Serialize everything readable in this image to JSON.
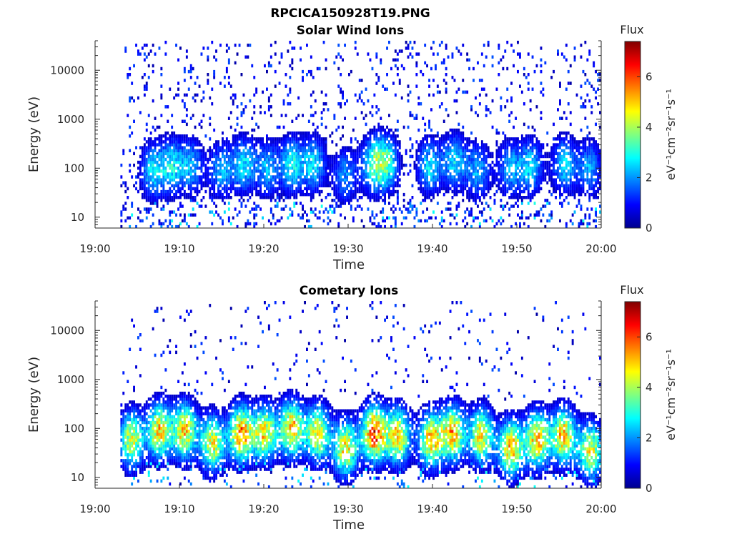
{
  "figure_title": "RPCICA150928T19.PNG",
  "chart_data": [
    {
      "type": "heatmap",
      "title": "Solar Wind Ions",
      "xlabel": "Time",
      "ylabel": "Energy (eV)",
      "y_scale": "log",
      "ylim": [
        6,
        40000
      ],
      "xlim": [
        "19:00",
        "20:00"
      ],
      "x_ticks": [
        "19:00",
        "19:10",
        "19:20",
        "19:30",
        "19:40",
        "19:50",
        "20:00"
      ],
      "y_ticks": [
        "10",
        "100",
        "1000",
        "10000"
      ],
      "data_start": "19:03",
      "colorbar": {
        "title": "Flux",
        "label": "eV⁻¹cm⁻²sr⁻¹s⁻¹",
        "ticks": [
          "0",
          "2",
          "4",
          "6"
        ],
        "range": [
          0,
          7.4
        ],
        "colormap": "jet"
      },
      "pattern": "sparse",
      "bursts": [
        {
          "time": 6.7,
          "energy": 90,
          "peak": 2.6
        },
        {
          "time": 9.0,
          "energy": 110,
          "peak": 2.6
        },
        {
          "time": 11.3,
          "energy": 110,
          "peak": 2.2
        },
        {
          "time": 14.8,
          "energy": 90,
          "peak": 2.2
        },
        {
          "time": 17.5,
          "energy": 120,
          "peak": 2.6
        },
        {
          "time": 20.3,
          "energy": 100,
          "peak": 2.2
        },
        {
          "time": 23.2,
          "energy": 120,
          "peak": 2.8
        },
        {
          "time": 25.8,
          "energy": 120,
          "peak": 2.6
        },
        {
          "time": 29.5,
          "energy": 70,
          "peak": 2.0
        },
        {
          "time": 32.8,
          "energy": 120,
          "peak": 2.8
        },
        {
          "time": 34.4,
          "energy": 130,
          "peak": 3.2
        },
        {
          "time": 39.5,
          "energy": 110,
          "peak": 2.6
        },
        {
          "time": 42.5,
          "energy": 140,
          "peak": 2.6
        },
        {
          "time": 45.3,
          "energy": 90,
          "peak": 2.2
        },
        {
          "time": 49.0,
          "energy": 100,
          "peak": 2.2
        },
        {
          "time": 51.5,
          "energy": 110,
          "peak": 2.6
        },
        {
          "time": 55.5,
          "energy": 120,
          "peak": 2.6
        },
        {
          "time": 58.5,
          "energy": 100,
          "peak": 2.2
        }
      ]
    },
    {
      "type": "heatmap",
      "title": "Cometary Ions",
      "xlabel": "Time",
      "ylabel": "Energy (eV)",
      "y_scale": "log",
      "ylim": [
        6,
        40000
      ],
      "xlim": [
        "19:00",
        "20:00"
      ],
      "x_ticks": [
        "19:00",
        "19:10",
        "19:20",
        "19:30",
        "19:40",
        "19:50",
        "20:00"
      ],
      "y_ticks": [
        "10",
        "100",
        "1000",
        "10000"
      ],
      "data_start": "19:03",
      "colorbar": {
        "title": "Flux",
        "label": "eV⁻¹cm⁻²sr⁻¹s⁻¹",
        "ticks": [
          "0",
          "2",
          "4",
          "6"
        ],
        "range": [
          0,
          7.4
        ],
        "colormap": "jet"
      },
      "pattern": "bursts",
      "bursts": [
        {
          "time": 4.2,
          "energy": 60,
          "peak": 4.5
        },
        {
          "time": 7.5,
          "energy": 90,
          "peak": 5.0
        },
        {
          "time": 10.5,
          "energy": 90,
          "peak": 5.0
        },
        {
          "time": 13.8,
          "energy": 50,
          "peak": 4.6
        },
        {
          "time": 17.2,
          "energy": 80,
          "peak": 5.6
        },
        {
          "time": 20.0,
          "energy": 80,
          "peak": 4.8
        },
        {
          "time": 23.2,
          "energy": 100,
          "peak": 5.2
        },
        {
          "time": 26.3,
          "energy": 80,
          "peak": 4.8
        },
        {
          "time": 29.6,
          "energy": 40,
          "peak": 4.8
        },
        {
          "time": 33.0,
          "energy": 80,
          "peak": 6.2
        },
        {
          "time": 35.8,
          "energy": 70,
          "peak": 5.0
        },
        {
          "time": 39.7,
          "energy": 60,
          "peak": 5.0
        },
        {
          "time": 42.3,
          "energy": 80,
          "peak": 5.2
        },
        {
          "time": 45.7,
          "energy": 70,
          "peak": 4.8
        },
        {
          "time": 49.2,
          "energy": 40,
          "peak": 5.2
        },
        {
          "time": 52.3,
          "energy": 60,
          "peak": 5.2
        },
        {
          "time": 55.4,
          "energy": 70,
          "peak": 5.2
        },
        {
          "time": 58.6,
          "energy": 35,
          "peak": 4.6
        }
      ]
    }
  ]
}
